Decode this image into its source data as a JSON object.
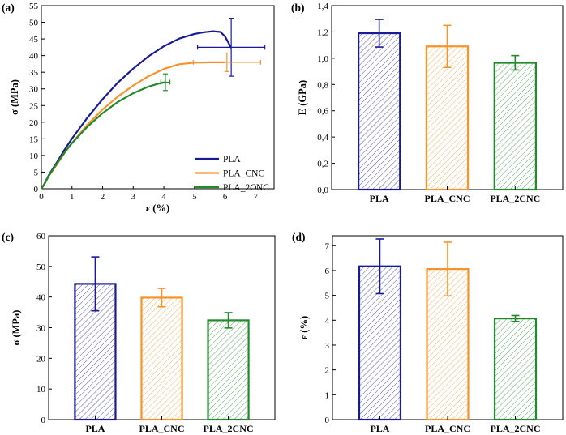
{
  "colors": {
    "PLA": "#1a1a96",
    "PLA_CNC": "#f7932a",
    "PLA_2CNC": "#218a2b"
  },
  "chart_data": [
    {
      "id": "a",
      "panel_label": "(a)",
      "type": "line",
      "xlabel": "ε (%)",
      "ylabel": "σ (MPa)",
      "xlim": [
        0,
        7.6
      ],
      "ylim": [
        0,
        55
      ],
      "xticks": [
        0,
        1,
        2,
        3,
        4,
        5,
        6,
        7
      ],
      "yticks": [
        0,
        5,
        10,
        15,
        20,
        25,
        30,
        35,
        40,
        45,
        50,
        55
      ],
      "legend_position": "bottom-right",
      "series": [
        {
          "name": "PLA",
          "color_key": "PLA",
          "x": [
            0,
            0.1,
            0.25,
            0.5,
            0.75,
            1,
            1.5,
            2,
            2.5,
            3,
            3.5,
            4,
            4.5,
            5,
            5.3,
            5.6,
            5.85,
            6.0,
            6.1,
            6.2
          ],
          "y": [
            0,
            1.5,
            4.2,
            7.8,
            11.6,
            15.1,
            21.3,
            26.9,
            31.9,
            36.1,
            39.8,
            42.8,
            45.1,
            46.5,
            47.0,
            47.3,
            47.1,
            45.7,
            44.0,
            42.3
          ],
          "errbar": {
            "x": 6.2,
            "y": 42.5,
            "xerr": 1.1,
            "yerr": 8.7
          }
        },
        {
          "name": "PLA_CNC",
          "color_key": "PLA_CNC",
          "x": [
            0,
            0.1,
            0.25,
            0.5,
            0.75,
            1,
            1.5,
            2,
            2.5,
            3,
            3.5,
            4,
            4.5,
            5,
            5.5,
            6.0
          ],
          "y": [
            0,
            1.4,
            3.9,
            7.2,
            10.6,
            13.8,
            19.2,
            23.8,
            27.7,
            31.0,
            33.8,
            36.0,
            37.4,
            37.9,
            38.0,
            38.0
          ],
          "errbar": {
            "x": 6.06,
            "y": 38.0,
            "xerr": 1.1,
            "yerr": 2.8
          }
        },
        {
          "name": "PLA_2CNC",
          "color_key": "PLA_2CNC",
          "x": [
            0,
            0.1,
            0.25,
            0.5,
            0.75,
            1,
            1.5,
            2,
            2.5,
            3,
            3.5,
            3.8,
            4.05
          ],
          "y": [
            0,
            1.4,
            4.0,
            7.5,
            10.8,
            13.7,
            18.6,
            22.7,
            26.1,
            28.7,
            30.7,
            31.5,
            32.0
          ],
          "errbar": {
            "x": 4.05,
            "y": 32.0,
            "xerr": 0.15,
            "yerr": 2.5
          }
        }
      ]
    },
    {
      "id": "b",
      "panel_label": "(b)",
      "type": "bar",
      "ylabel": "E (GPa)",
      "ylim": [
        0,
        1.4
      ],
      "yticks": [
        0,
        0.2,
        0.4,
        0.6,
        0.8,
        1.0,
        1.2,
        1.4
      ],
      "ytick_labels": [
        "0,0",
        "0,2",
        "0,4",
        "0,6",
        "0,8",
        "1,0",
        "1,2",
        "1,4"
      ],
      "categories": [
        "PLA",
        "PLA_CNC",
        "PLA_2CNC"
      ],
      "values": [
        1.19,
        1.09,
        0.965
      ],
      "errors": [
        0.105,
        0.16,
        0.055
      ]
    },
    {
      "id": "c",
      "panel_label": "(c)",
      "type": "bar",
      "ylabel": "σ (MPa)",
      "ylim": [
        0,
        60
      ],
      "yticks": [
        0,
        10,
        20,
        30,
        40,
        50,
        60
      ],
      "ytick_labels": [
        "0",
        "10",
        "20",
        "30",
        "40",
        "50",
        "60"
      ],
      "categories": [
        "PLA",
        "PLA_CNC",
        "PLA_2CNC"
      ],
      "values": [
        44.3,
        39.8,
        32.4
      ],
      "errors": [
        8.8,
        3.0,
        2.5
      ]
    },
    {
      "id": "d",
      "panel_label": "(d)",
      "type": "bar",
      "ylabel": "ε (%)",
      "ylim": [
        0,
        7.4
      ],
      "yticks": [
        0,
        1,
        2,
        3,
        4,
        5,
        6,
        7
      ],
      "ytick_labels": [
        "0",
        "1",
        "2",
        "3",
        "4",
        "5",
        "6",
        "7"
      ],
      "categories": [
        "PLA",
        "PLA_CNC",
        "PLA_2CNC"
      ],
      "values": [
        6.17,
        6.06,
        4.07
      ],
      "errors": [
        1.1,
        1.08,
        0.12
      ]
    }
  ]
}
